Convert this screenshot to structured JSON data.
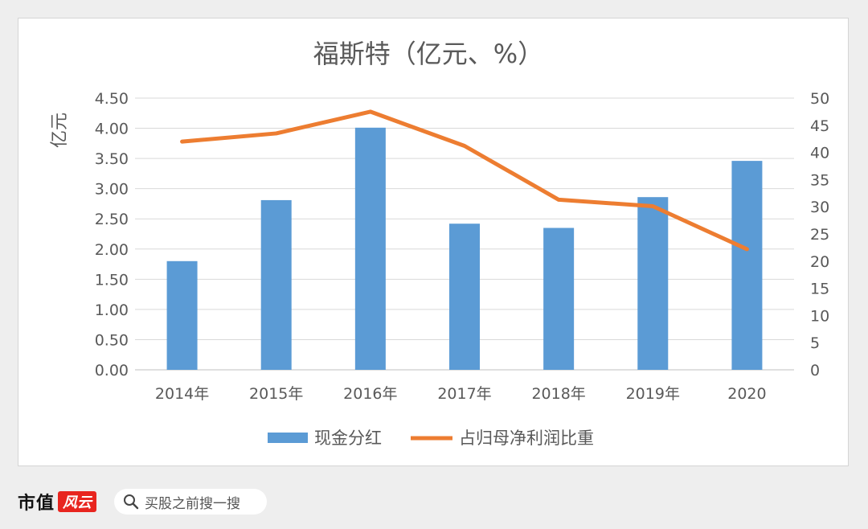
{
  "chart_data": {
    "type": "bar+line",
    "title": "福斯特（亿元、%）",
    "ylabel": "亿元",
    "y2label": "",
    "categories": [
      "2014年",
      "2015年",
      "2016年",
      "2017年",
      "2018年",
      "2019年",
      "2020"
    ],
    "ylim": [
      0,
      4.5
    ],
    "y_ticks": [
      "0.00",
      "0.50",
      "1.00",
      "1.50",
      "2.00",
      "2.50",
      "3.00",
      "3.50",
      "4.00",
      "4.50"
    ],
    "y2lim": [
      0,
      50
    ],
    "y2_ticks": [
      "0",
      "5",
      "10",
      "15",
      "20",
      "25",
      "30",
      "35",
      "40",
      "45",
      "50"
    ],
    "grid": true,
    "legend_position": "bottom",
    "series": [
      {
        "name": "现金分红",
        "type": "bar",
        "axis": "left",
        "color": "#5b9bd5",
        "values": [
          1.8,
          2.81,
          4.01,
          2.42,
          2.35,
          2.86,
          3.46
        ]
      },
      {
        "name": "占归母净利润比重",
        "type": "line",
        "axis": "right",
        "color": "#ed7d31",
        "values": [
          42.0,
          43.5,
          47.5,
          41.2,
          31.3,
          30.1,
          22.2
        ]
      }
    ]
  },
  "watermark": "市值风云",
  "footer": {
    "brand": "市值",
    "brand_badge": "风云",
    "search_placeholder": "买股之前搜一搜"
  }
}
